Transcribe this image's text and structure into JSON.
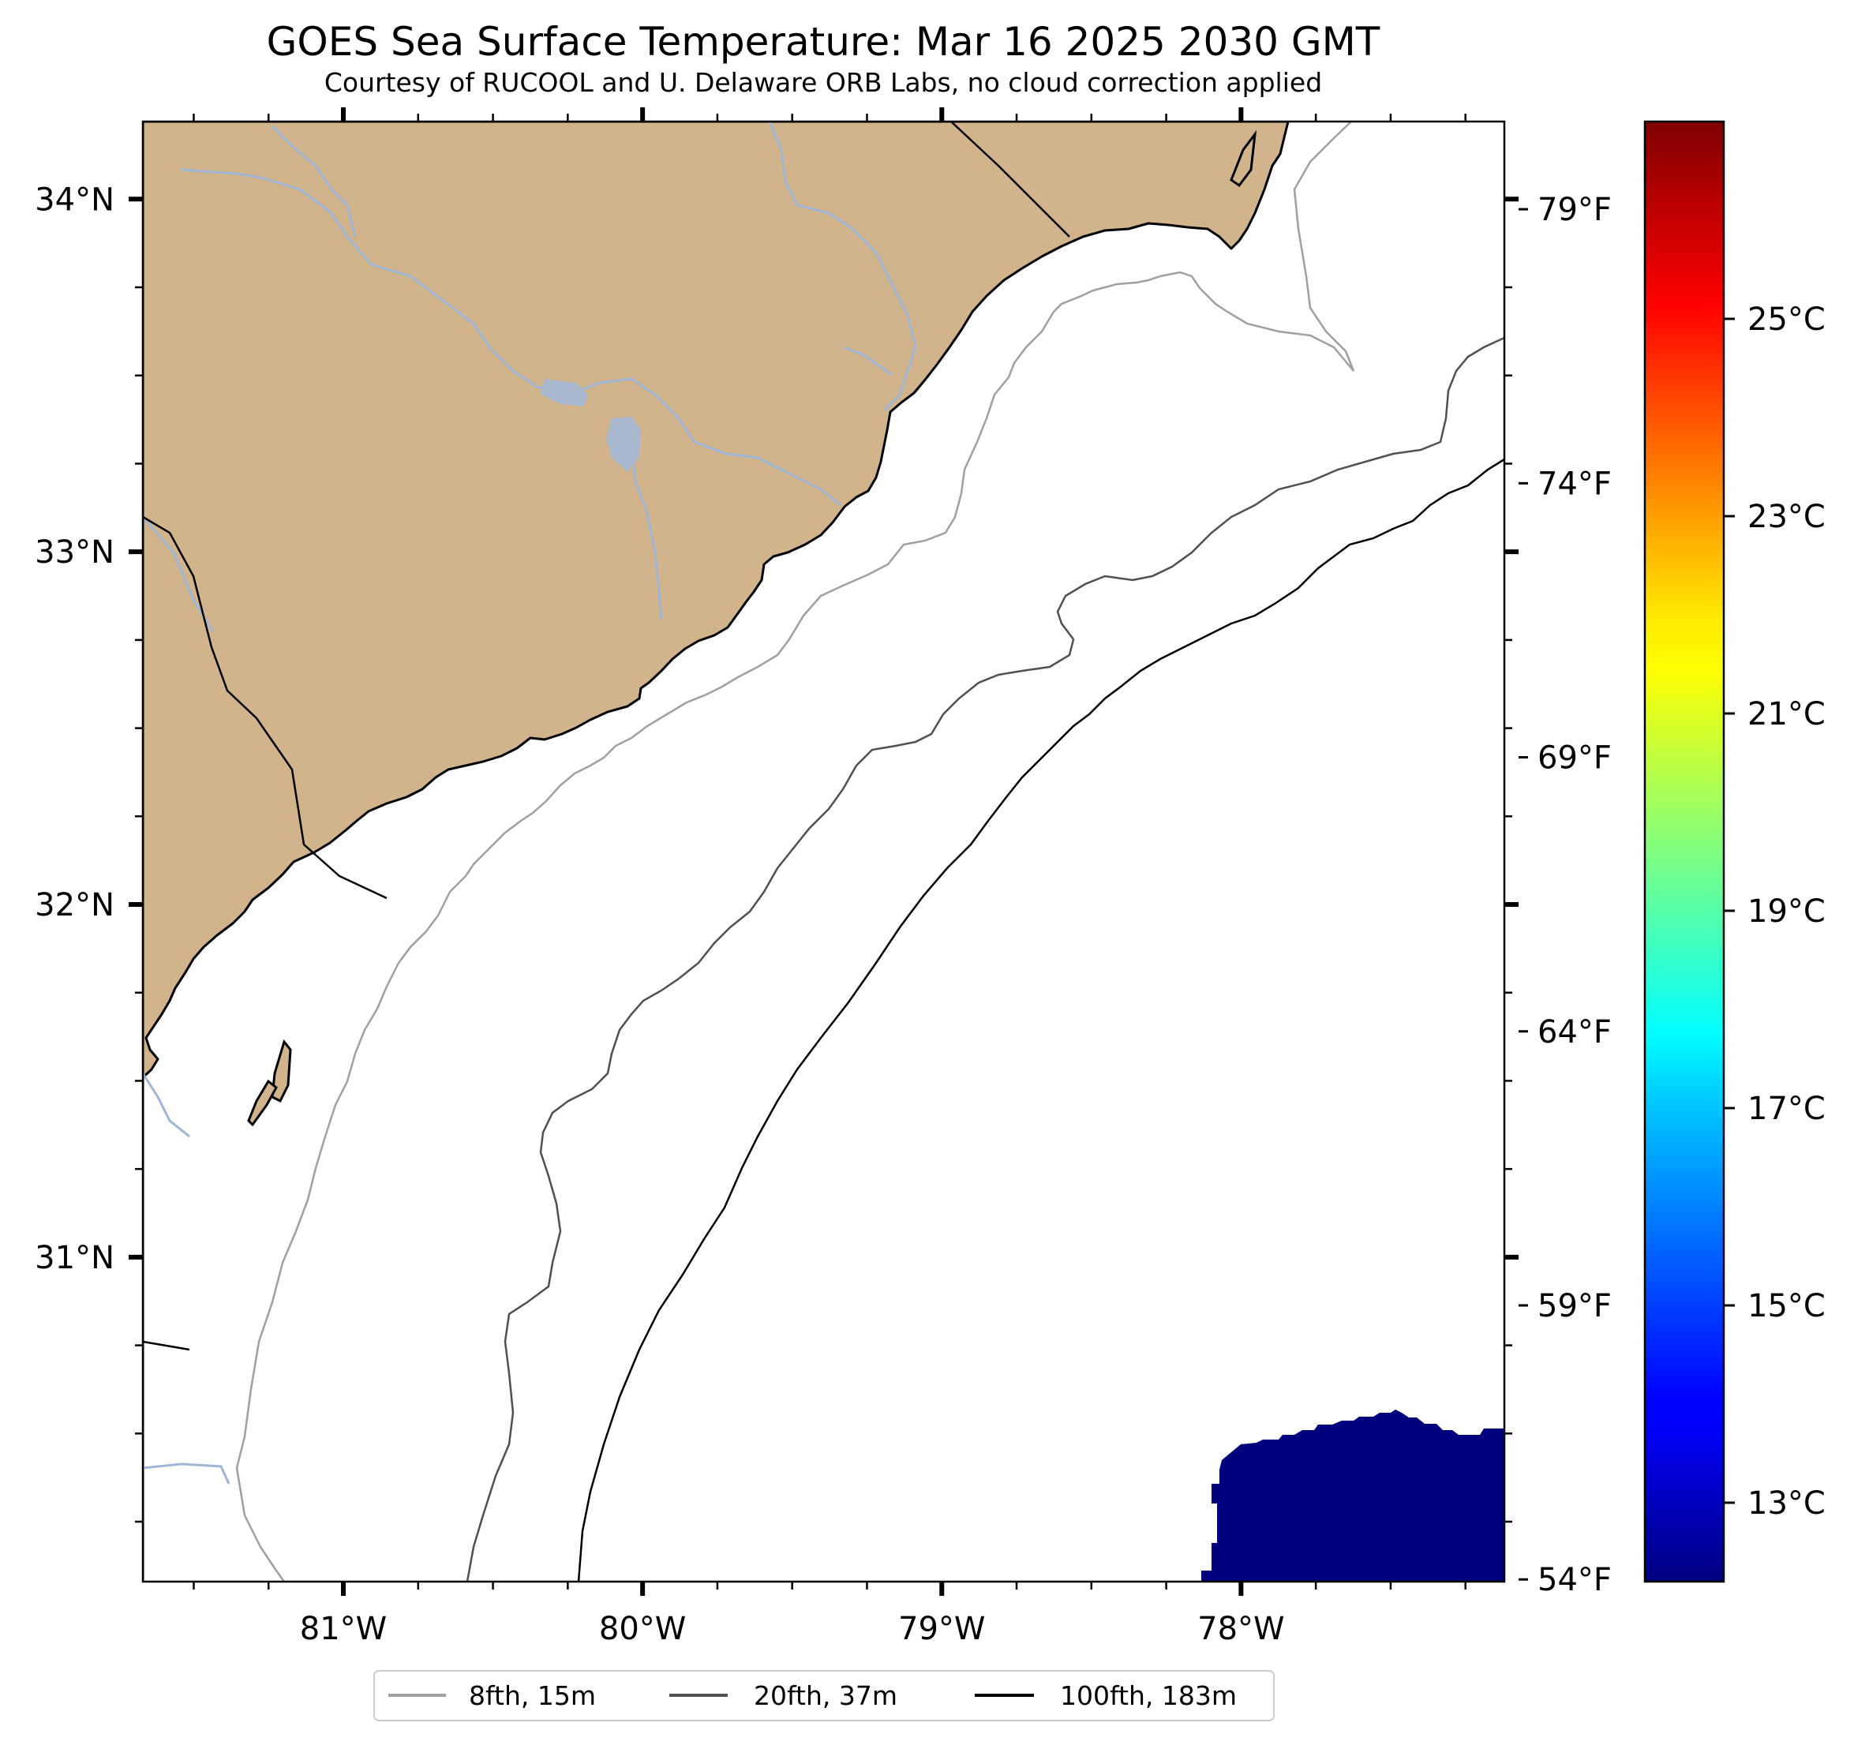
{
  "header": {
    "title": "GOES Sea Surface Temperature: Mar 16 2025 2030 GMT",
    "subtitle": "Courtesy of RUCOOL and U. Delaware ORB Labs, no cloud correction applied"
  },
  "map": {
    "extent": {
      "lon_min": -81.67,
      "lon_max": -77.12,
      "lat_min": 30.08,
      "lat_max": 34.22
    },
    "land_color": "#d2b48c",
    "water_color": "#ffffff",
    "river_color": "#9fb6d6",
    "lon_ticks": [
      {
        "lon": -81,
        "label": "81°W"
      },
      {
        "lon": -80,
        "label": "80°W"
      },
      {
        "lon": -79,
        "label": "79°W"
      },
      {
        "lon": -78,
        "label": "78°W"
      }
    ],
    "lat_ticks": [
      {
        "lat": 34,
        "label": "34°N"
      },
      {
        "lat": 33,
        "label": "33°N"
      },
      {
        "lat": 32,
        "label": "32°N"
      },
      {
        "lat": 31,
        "label": "31°N"
      }
    ],
    "fahrenheit_ticks": [
      {
        "f": 79,
        "label": "79°F"
      },
      {
        "f": 74,
        "label": "74°F"
      },
      {
        "f": 69,
        "label": "69°F"
      },
      {
        "f": 64,
        "label": "64°F"
      },
      {
        "f": 59,
        "label": "59°F"
      },
      {
        "f": 54,
        "label": "54°F"
      }
    ],
    "sst_patch": {
      "temperature_c": 12.2,
      "color": "#00007f"
    }
  },
  "colorbar": {
    "min_c": 12.2,
    "max_c": 27.0,
    "colormap": "jet",
    "ticks": [
      {
        "c": 13,
        "label": "13°C"
      },
      {
        "c": 15,
        "label": "15°C"
      },
      {
        "c": 17,
        "label": "17°C"
      },
      {
        "c": 19,
        "label": "19°C"
      },
      {
        "c": 21,
        "label": "21°C"
      },
      {
        "c": 23,
        "label": "23°C"
      },
      {
        "c": 25,
        "label": "25°C"
      }
    ]
  },
  "legend": {
    "items": [
      {
        "label": "8fth, 15m",
        "color": "#a0a0a0"
      },
      {
        "label": "20fth, 37m",
        "color": "#505050"
      },
      {
        "label": "100fth, 183m",
        "color": "#000000"
      }
    ]
  }
}
